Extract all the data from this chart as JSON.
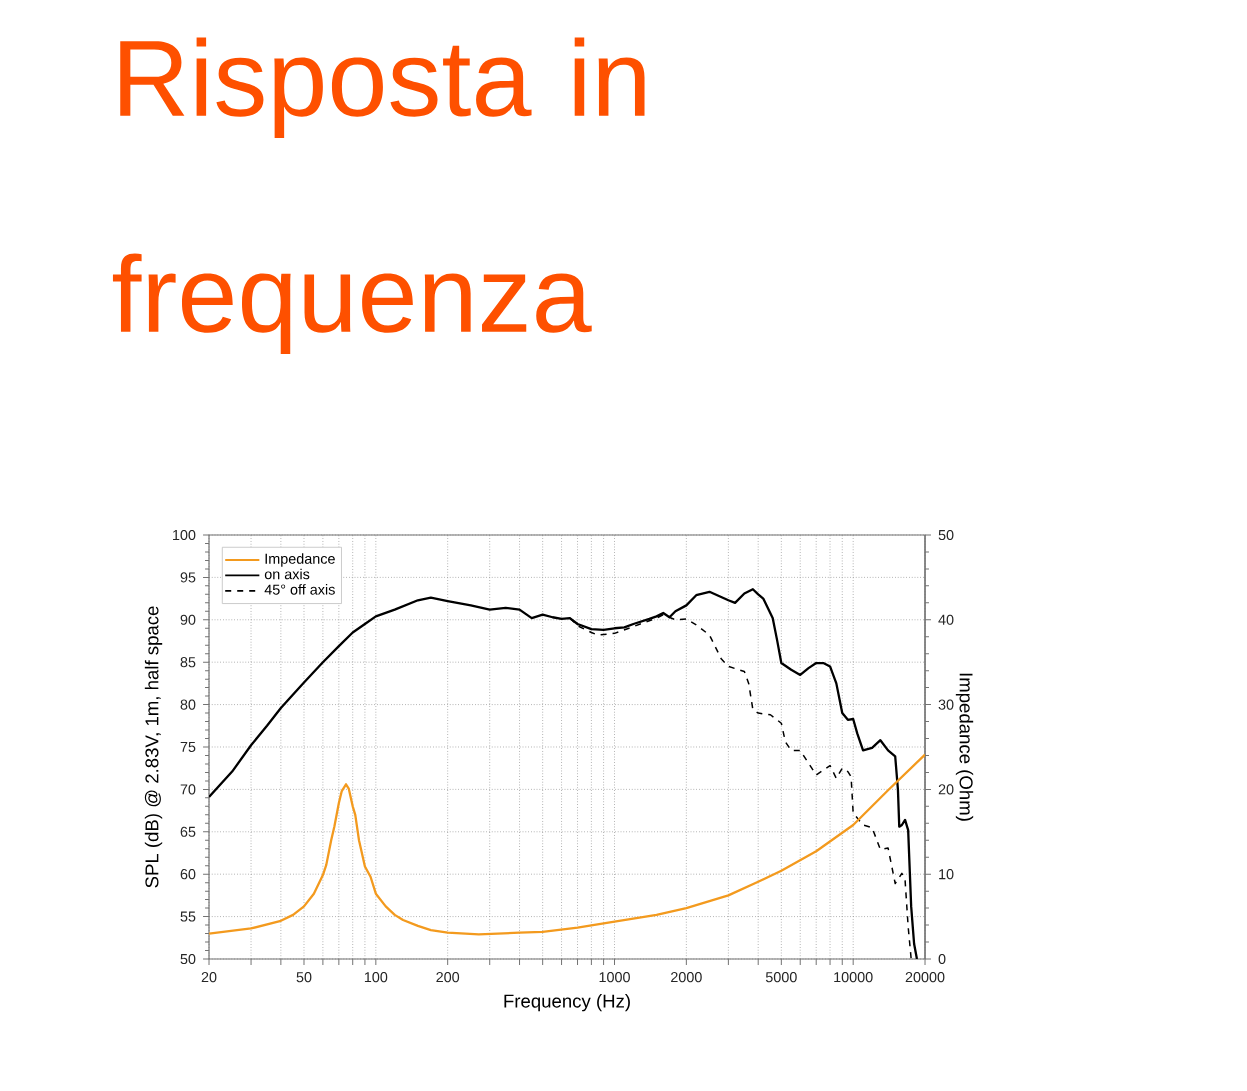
{
  "chart_data": {
    "type": "line",
    "title": "Risposta in frequenza",
    "xlabel": "Frequency (Hz)",
    "ylabel": "SPL (dB) @ 2.83V, 1m, half space",
    "y2label": "Impedance (Ohm)",
    "log": "x",
    "xlim": [
      20,
      20000
    ],
    "xticks": [
      20,
      {
        "value": 30,
        "label": null
      },
      {
        "value": 40,
        "label": null
      },
      50,
      {
        "value": 60,
        "label": null
      },
      {
        "value": 70,
        "label": null
      },
      {
        "value": 80,
        "label": null
      },
      {
        "value": 90,
        "label": null
      },
      100,
      200,
      {
        "value": 300,
        "label": null
      },
      {
        "value": 400,
        "label": null
      },
      {
        "value": 500,
        "label": null
      },
      {
        "value": 600,
        "label": null
      },
      {
        "value": 700,
        "label": null
      },
      {
        "value": 800,
        "label": null
      },
      {
        "value": 900,
        "label": null
      },
      1000,
      2000,
      {
        "value": 3000,
        "label": null
      },
      {
        "value": 4000,
        "label": null
      },
      5000,
      {
        "value": 6000,
        "label": null
      },
      {
        "value": 7000,
        "label": null
      },
      {
        "value": 8000,
        "label": null
      },
      {
        "value": 9000,
        "label": null
      },
      10000,
      20000
    ],
    "ylim": [
      50,
      100
    ],
    "yticks": [
      50,
      55,
      60,
      65,
      70,
      75,
      80,
      85,
      90,
      95,
      100
    ],
    "y2lim": [
      0,
      50
    ],
    "y2ticks": [
      0,
      10,
      20,
      30,
      40,
      50
    ],
    "grid": true,
    "legend": "top left",
    "series": [
      {
        "name": "Impedance",
        "color": "#f39a1e",
        "axis": "y2",
        "line_style": "solid",
        "x": [
          20,
          30,
          40,
          45,
          50,
          55,
          60,
          62,
          65,
          67,
          70,
          72,
          75,
          77,
          80,
          82,
          85,
          90,
          95,
          100,
          110,
          120,
          130,
          150,
          170,
          200,
          270,
          400,
          500,
          700,
          1000,
          1500,
          2000,
          3000,
          4000,
          5000,
          7000,
          10000,
          14000,
          20000
        ],
        "values": [
          3.0,
          3.6,
          4.5,
          5.2,
          6.2,
          7.7,
          9.9,
          11.1,
          14.0,
          15.6,
          18.4,
          19.8,
          20.6,
          20.1,
          18.0,
          17.0,
          14.0,
          10.9,
          9.7,
          7.7,
          6.2,
          5.2,
          4.6,
          3.9,
          3.4,
          3.1,
          2.9,
          3.1,
          3.2,
          3.7,
          4.4,
          5.2,
          6.0,
          7.5,
          9.1,
          10.4,
          12.7,
          15.8,
          19.9,
          24.1
        ]
      },
      {
        "name": "on axis",
        "color": "#000000",
        "line_style": "solid",
        "x": [
          20,
          25,
          30,
          35,
          40,
          45,
          50,
          60,
          70,
          80,
          90,
          100,
          120,
          150,
          170,
          200,
          250,
          300,
          350,
          400,
          450,
          500,
          550,
          600,
          650,
          700,
          800,
          900,
          1000,
          1100,
          1200,
          1400,
          1500,
          1600,
          1700,
          1800,
          2000,
          2200,
          2500,
          3000,
          3200,
          3500,
          3800,
          4000,
          4200,
          4600,
          4800,
          5000,
          5500,
          6000,
          6500,
          7000,
          7500,
          8000,
          8500,
          9000,
          9500,
          10000,
          10400,
          11000,
          12000,
          13000,
          14000,
          15000,
          15400,
          15600,
          16000,
          16500,
          17000,
          17500,
          18000,
          18500
        ],
        "values": [
          69.1,
          72.1,
          75.2,
          77.5,
          79.6,
          81.2,
          82.6,
          85.0,
          86.9,
          88.5,
          89.5,
          90.4,
          91.2,
          92.3,
          92.6,
          92.2,
          91.7,
          91.2,
          91.4,
          91.2,
          90.2,
          90.6,
          90.3,
          90.1,
          90.2,
          89.5,
          88.9,
          88.8,
          89.0,
          89.1,
          89.5,
          90.1,
          90.4,
          90.8,
          90.3,
          91.0,
          91.7,
          92.9,
          93.3,
          92.3,
          92.0,
          93.1,
          93.6,
          93.0,
          92.5,
          90.2,
          87.6,
          84.9,
          84.1,
          83.5,
          84.3,
          84.9,
          84.9,
          84.5,
          82.5,
          79.0,
          78.2,
          78.3,
          76.6,
          74.6,
          74.9,
          75.8,
          74.6,
          73.9,
          70.0,
          65.6,
          65.8,
          66.4,
          65.2,
          56.2,
          51.8,
          50.0
        ]
      },
      {
        "name": "45° off axis",
        "color": "#000000",
        "line_style": "dashed",
        "x": [
          650,
          700,
          800,
          850,
          1000,
          1200,
          1500,
          1600,
          1800,
          2000,
          2200,
          2500,
          2800,
          3000,
          3500,
          3650,
          3800,
          4000,
          4500,
          5000,
          5200,
          5500,
          6000,
          7000,
          8000,
          8500,
          9000,
          9500,
          9800,
          10000,
          11000,
          12000,
          13000,
          14000,
          15000,
          16000,
          16500,
          17000,
          17500
        ],
        "values": [
          90.2,
          89.3,
          88.5,
          88.2,
          88.4,
          89.2,
          90.2,
          90.6,
          90.0,
          90.1,
          89.4,
          88.2,
          85.4,
          84.5,
          83.9,
          82.5,
          79.4,
          79.0,
          78.8,
          77.8,
          75.6,
          74.6,
          74.6,
          71.7,
          72.8,
          71.3,
          72.5,
          72.1,
          71.5,
          67.2,
          65.8,
          65.5,
          62.9,
          63.1,
          58.9,
          60.1,
          59.3,
          53.8,
          50.0
        ]
      }
    ]
  }
}
